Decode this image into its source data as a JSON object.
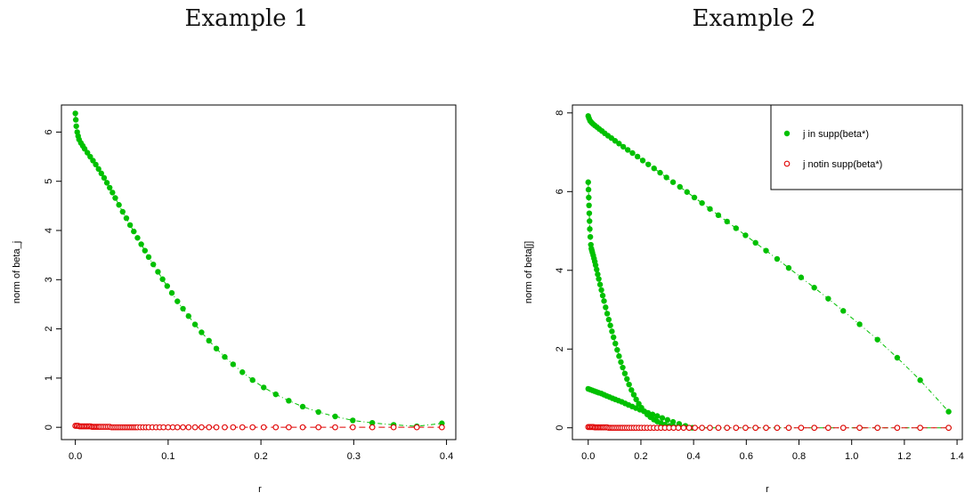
{
  "titles": {
    "left": "Example 1",
    "right": "Example 2"
  },
  "colors": {
    "support": "#00c000",
    "nonsupport": "#e00000"
  },
  "chart_data": [
    {
      "type": "scatter",
      "title": "Example 1",
      "xlabel": "r",
      "ylabel": "norm of beta_j",
      "xlim": [
        -0.015,
        0.41
      ],
      "ylim": [
        -0.25,
        6.55
      ],
      "xticks": [
        0.0,
        0.1,
        0.2,
        0.3,
        0.4
      ],
      "yticks": [
        0,
        1,
        2,
        3,
        4,
        5,
        6
      ],
      "tick_labels_x": [
        "0.0",
        "0.1",
        "0.2",
        "0.3",
        "0.4"
      ],
      "tick_labels_y": [
        "0",
        "1",
        "2",
        "3",
        "4",
        "5",
        "6"
      ],
      "legend": null,
      "series": [
        {
          "role": "support",
          "marker": "filled-circle",
          "line": "dot-dash",
          "color": "#00c000",
          "x": [
            0.0,
            0.0005,
            0.001,
            0.002,
            0.003,
            0.004,
            0.006,
            0.008,
            0.01,
            0.013,
            0.016,
            0.019,
            0.022,
            0.025,
            0.028,
            0.031,
            0.034,
            0.037,
            0.04,
            0.043,
            0.047,
            0.051,
            0.055,
            0.059,
            0.063,
            0.067,
            0.071,
            0.075,
            0.079,
            0.084,
            0.089,
            0.094,
            0.099,
            0.104,
            0.11,
            0.116,
            0.122,
            0.129,
            0.136,
            0.144,
            0.152,
            0.161,
            0.17,
            0.18,
            0.191,
            0.203,
            0.216,
            0.23,
            0.245,
            0.262,
            0.28,
            0.299,
            0.32,
            0.343,
            0.368,
            0.395
          ],
          "y": [
            6.38,
            6.25,
            6.12,
            6.0,
            5.92,
            5.85,
            5.78,
            5.72,
            5.66,
            5.58,
            5.5,
            5.42,
            5.34,
            5.25,
            5.16,
            5.07,
            4.97,
            4.87,
            4.77,
            4.66,
            4.52,
            4.38,
            4.25,
            4.11,
            3.98,
            3.85,
            3.72,
            3.59,
            3.46,
            3.31,
            3.16,
            3.01,
            2.87,
            2.73,
            2.56,
            2.41,
            2.26,
            2.09,
            1.93,
            1.76,
            1.6,
            1.43,
            1.28,
            1.12,
            0.96,
            0.81,
            0.67,
            0.54,
            0.42,
            0.31,
            0.22,
            0.14,
            0.09,
            0.05,
            0.02,
            0.08
          ]
        },
        {
          "role": "nonsupport",
          "marker": "open-circle",
          "line": "dashed",
          "color": "#e00000",
          "x": [
            0.0,
            0.0015,
            0.003,
            0.0045,
            0.006,
            0.0075,
            0.009,
            0.0105,
            0.012,
            0.0135,
            0.015,
            0.0165,
            0.018,
            0.0195,
            0.021,
            0.0225,
            0.024,
            0.0255,
            0.027,
            0.029,
            0.031,
            0.033,
            0.035,
            0.037,
            0.039,
            0.041,
            0.043,
            0.045,
            0.047,
            0.049,
            0.051,
            0.053,
            0.055,
            0.057,
            0.059,
            0.061,
            0.063,
            0.065,
            0.067,
            0.07,
            0.073,
            0.076,
            0.079,
            0.083,
            0.087,
            0.091,
            0.095,
            0.1,
            0.105,
            0.11,
            0.116,
            0.122,
            0.129,
            0.136,
            0.144,
            0.152,
            0.161,
            0.17,
            0.18,
            0.191,
            0.203,
            0.216,
            0.23,
            0.245,
            0.262,
            0.28,
            0.299,
            0.32,
            0.343,
            0.368,
            0.395
          ],
          "y": [
            0.03,
            0.03,
            0.03,
            0.02,
            0.02,
            0.02,
            0.02,
            0.02,
            0.02,
            0.02,
            0.02,
            0.02,
            0.01,
            0.01,
            0.01,
            0.01,
            0.01,
            0.01,
            0.01,
            0.01,
            0.01,
            0.01,
            0.01,
            0.01,
            0.0,
            0.0,
            0.0,
            0.0,
            0.0,
            0.0,
            0.0,
            0.0,
            0.0,
            0.0,
            0.0,
            0.0,
            0.0,
            0.0,
            0.0,
            0.0,
            0.0,
            0.0,
            0.0,
            0.0,
            0.0,
            0.0,
            0.0,
            0.0,
            0.0,
            0.0,
            0.0,
            0.0,
            0.0,
            0.0,
            0.0,
            0.0,
            0.0,
            0.0,
            0.0,
            0.0,
            0.0,
            0.0,
            0.0,
            0.0,
            0.0,
            0.0,
            0.0,
            0.0,
            0.0,
            0.0,
            0.0
          ]
        }
      ]
    },
    {
      "type": "scatter",
      "title": "Example 2",
      "xlabel": "r",
      "ylabel": "norm of  beta[j]",
      "xlim": [
        -0.06,
        1.42
      ],
      "ylim": [
        -0.3,
        8.2
      ],
      "xticks": [
        0.0,
        0.2,
        0.4,
        0.6,
        0.8,
        1.0,
        1.2,
        1.4
      ],
      "yticks": [
        0,
        2,
        4,
        6,
        8
      ],
      "tick_labels_x": [
        "0.0",
        "0.2",
        "0.4",
        "0.6",
        "0.8",
        "1.0",
        "1.2",
        "1.4"
      ],
      "tick_labels_y": [
        "0",
        "2",
        "4",
        "6",
        "8"
      ],
      "legend": {
        "position": "top-right",
        "entries": [
          {
            "label": "j in supp(beta*)",
            "role": "support"
          },
          {
            "label": "j notin supp(beta*)",
            "role": "nonsupport"
          }
        ]
      },
      "series": [
        {
          "role": "support",
          "marker": "filled-circle",
          "line": "dot-dash",
          "color": "#00c000",
          "x": [
            0.0,
            0.003,
            0.007,
            0.012,
            0.018,
            0.025,
            0.033,
            0.042,
            0.052,
            0.063,
            0.075,
            0.088,
            0.102,
            0.117,
            0.133,
            0.15,
            0.168,
            0.187,
            0.207,
            0.228,
            0.25,
            0.273,
            0.297,
            0.322,
            0.348,
            0.375,
            0.403,
            0.432,
            0.462,
            0.494,
            0.527,
            0.561,
            0.597,
            0.635,
            0.675,
            0.717,
            0.761,
            0.808,
            0.858,
            0.911,
            0.968,
            1.03,
            1.098,
            1.173,
            1.26,
            1.368
          ],
          "y": [
            7.92,
            7.86,
            7.8,
            7.76,
            7.72,
            7.68,
            7.64,
            7.59,
            7.54,
            7.48,
            7.42,
            7.36,
            7.29,
            7.22,
            7.14,
            7.06,
            6.98,
            6.89,
            6.79,
            6.69,
            6.59,
            6.48,
            6.36,
            6.24,
            6.12,
            5.99,
            5.85,
            5.71,
            5.56,
            5.4,
            5.24,
            5.07,
            4.89,
            4.7,
            4.5,
            4.29,
            4.06,
            3.82,
            3.56,
            3.28,
            2.97,
            2.63,
            2.24,
            1.78,
            1.21,
            0.41
          ]
        },
        {
          "role": "support",
          "marker": "filled-circle",
          "line": "dot-dash",
          "color": "#00c000",
          "x": [
            0.0,
            0.001,
            0.002,
            0.003,
            0.004,
            0.005,
            0.006,
            0.008,
            0.01,
            0.012,
            0.014,
            0.016,
            0.019,
            0.022,
            0.025,
            0.028,
            0.032,
            0.036,
            0.04,
            0.045,
            0.05,
            0.055,
            0.06,
            0.066,
            0.072,
            0.078,
            0.084,
            0.09,
            0.096,
            0.103,
            0.11,
            0.117,
            0.124,
            0.131,
            0.139,
            0.147,
            0.155,
            0.164,
            0.173,
            0.182,
            0.192,
            0.202,
            0.213,
            0.224,
            0.236,
            0.249,
            0.262,
            0.276,
            0.291,
            0.307,
            0.324,
            0.342,
            0.362,
            0.383,
            0.405
          ],
          "y": [
            6.24,
            6.05,
            5.85,
            5.65,
            5.45,
            5.25,
            5.05,
            4.85,
            4.65,
            4.55,
            4.5,
            4.45,
            4.38,
            4.3,
            4.22,
            4.13,
            4.02,
            3.9,
            3.78,
            3.64,
            3.5,
            3.36,
            3.22,
            3.06,
            2.9,
            2.75,
            2.6,
            2.45,
            2.3,
            2.14,
            1.98,
            1.82,
            1.67,
            1.53,
            1.38,
            1.24,
            1.1,
            0.96,
            0.84,
            0.72,
            0.61,
            0.51,
            0.42,
            0.34,
            0.27,
            0.21,
            0.16,
            0.12,
            0.08,
            0.05,
            0.03,
            0.02,
            0.01,
            0.0,
            0.0
          ]
        },
        {
          "role": "support",
          "marker": "filled-circle",
          "line": "dot-dash",
          "color": "#00c000",
          "x": [
            0.0,
            0.008,
            0.016,
            0.024,
            0.032,
            0.04,
            0.05,
            0.06,
            0.07,
            0.081,
            0.092,
            0.103,
            0.115,
            0.127,
            0.14,
            0.153,
            0.167,
            0.181,
            0.196,
            0.211,
            0.227,
            0.244,
            0.262,
            0.281,
            0.301,
            0.322,
            0.345,
            0.369,
            0.395
          ],
          "y": [
            0.99,
            0.97,
            0.95,
            0.93,
            0.91,
            0.89,
            0.87,
            0.84,
            0.81,
            0.78,
            0.75,
            0.72,
            0.69,
            0.66,
            0.62,
            0.58,
            0.54,
            0.5,
            0.46,
            0.42,
            0.38,
            0.34,
            0.3,
            0.25,
            0.2,
            0.15,
            0.1,
            0.05,
            0.0
          ]
        },
        {
          "role": "support",
          "marker": "filled-circle",
          "line": "dot-dash",
          "color": "#00c000",
          "x": [
            0.432,
            0.462,
            0.494,
            0.527,
            0.561,
            0.597,
            0.635,
            0.675,
            0.717,
            0.761,
            0.808,
            0.858,
            0.911,
            0.968,
            1.03,
            1.098,
            1.173,
            1.26,
            1.368
          ],
          "y": [
            0.0,
            0.0,
            0.0,
            0.0,
            0.0,
            0.0,
            0.0,
            0.0,
            0.0,
            0.0,
            0.0,
            0.0,
            0.0,
            0.0,
            0.0,
            0.0,
            0.0,
            0.0,
            0.0
          ]
        },
        {
          "role": "nonsupport",
          "marker": "open-circle",
          "line": "dashed",
          "color": "#e00000",
          "x": [
            0.0,
            0.005,
            0.01,
            0.015,
            0.02,
            0.025,
            0.03,
            0.035,
            0.04,
            0.045,
            0.05,
            0.055,
            0.06,
            0.066,
            0.072,
            0.078,
            0.084,
            0.09,
            0.096,
            0.103,
            0.11,
            0.117,
            0.124,
            0.131,
            0.139,
            0.147,
            0.155,
            0.164,
            0.173,
            0.182,
            0.192,
            0.202,
            0.213,
            0.224,
            0.236,
            0.249,
            0.262,
            0.276,
            0.291,
            0.307,
            0.324,
            0.342,
            0.362,
            0.383,
            0.405,
            0.432,
            0.462,
            0.494,
            0.527,
            0.561,
            0.597,
            0.635,
            0.675,
            0.717,
            0.761,
            0.808,
            0.858,
            0.911,
            0.968,
            1.03,
            1.098,
            1.173,
            1.26,
            1.368
          ],
          "y": [
            0.02,
            0.02,
            0.02,
            0.02,
            0.02,
            0.01,
            0.01,
            0.01,
            0.01,
            0.01,
            0.01,
            0.01,
            0.01,
            0.01,
            0.01,
            0.0,
            0.0,
            0.0,
            0.0,
            0.0,
            0.0,
            0.0,
            0.0,
            0.0,
            0.0,
            0.0,
            0.0,
            0.0,
            0.0,
            0.0,
            0.0,
            0.0,
            0.0,
            0.0,
            0.0,
            0.0,
            0.0,
            0.0,
            0.0,
            0.0,
            0.0,
            0.0,
            0.0,
            0.0,
            0.0,
            0.0,
            0.0,
            0.0,
            0.0,
            0.0,
            0.0,
            0.0,
            0.0,
            0.0,
            0.0,
            0.0,
            0.0,
            0.0,
            0.0,
            0.0,
            0.0,
            0.0,
            0.0,
            0.0
          ]
        }
      ]
    }
  ]
}
